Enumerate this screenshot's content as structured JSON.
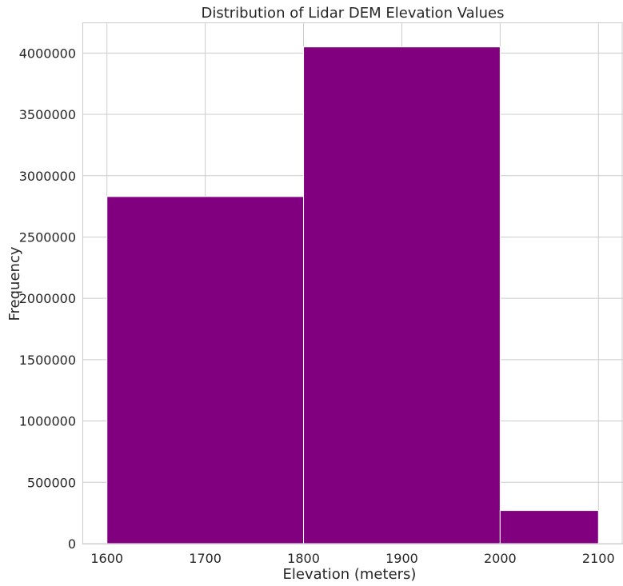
{
  "chart_data": {
    "type": "bar",
    "title": "Distribution of Lidar DEM Elevation Values",
    "xlabel": "Elevation (meters)",
    "ylabel": "Frequency",
    "bins": [
      {
        "x0": 1600,
        "x1": 1800,
        "count": 2830000
      },
      {
        "x0": 1800,
        "x1": 2000,
        "count": 4050000
      },
      {
        "x0": 2000,
        "x1": 2100,
        "count": 270000
      }
    ],
    "xlim": [
      1575,
      2125
    ],
    "ylim": [
      0,
      4250000
    ],
    "xticks": [
      1600,
      1700,
      1800,
      1900,
      2000,
      2100
    ],
    "xtick_labels": [
      "1600",
      "1700",
      "1800",
      "1900",
      "2000",
      "2100"
    ],
    "yticks": [
      0,
      500000,
      1000000,
      1500000,
      2000000,
      2500000,
      3000000,
      3500000,
      4000000
    ],
    "ytick_labels": [
      "0",
      "500000",
      "1000000",
      "1500000",
      "2000000",
      "2500000",
      "3000000",
      "3500000",
      "4000000"
    ],
    "grid": true,
    "bar_color": "#800080",
    "grid_color": "#cccccc",
    "spine_color": "#cccccc"
  }
}
